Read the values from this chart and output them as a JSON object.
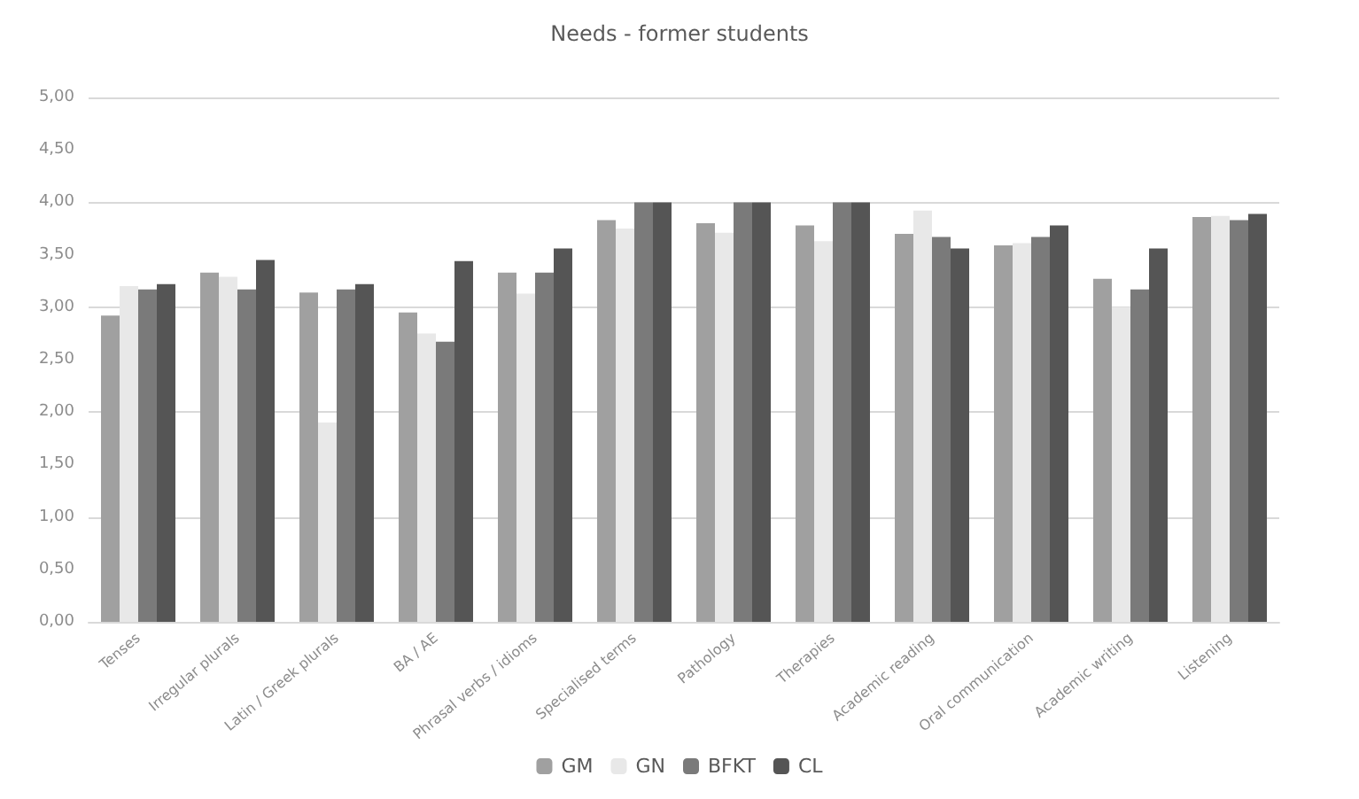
{
  "chart_data": {
    "type": "bar",
    "title": "Needs - former students",
    "categories": [
      "Tenses",
      "Irregular plurals",
      "Latin / Greek plurals",
      "BA / AE",
      "Phrasal verbs / idioms",
      "Specialised terms",
      "Pathology",
      "Therapies",
      "Academic reading",
      "Oral communication",
      "Academic writing",
      "Listening"
    ],
    "series": [
      {
        "name": "GM",
        "color": "#a0a0a0",
        "values": [
          2.92,
          3.33,
          3.14,
          2.95,
          3.33,
          3.83,
          3.8,
          3.78,
          3.7,
          3.59,
          3.27,
          3.86
        ]
      },
      {
        "name": "GN",
        "color": "#e8e8e8",
        "values": [
          3.2,
          3.29,
          1.9,
          2.75,
          3.13,
          3.75,
          3.71,
          3.63,
          3.92,
          3.61,
          3.0,
          3.87
        ]
      },
      {
        "name": "BFKT",
        "color": "#7a7a7a",
        "values": [
          3.17,
          3.17,
          3.17,
          2.67,
          3.33,
          4.0,
          4.0,
          4.0,
          3.67,
          3.67,
          3.17,
          3.83
        ]
      },
      {
        "name": "CL",
        "color": "#555555",
        "values": [
          3.22,
          3.45,
          3.22,
          3.44,
          3.56,
          4.0,
          4.0,
          4.0,
          3.56,
          3.78,
          3.56,
          3.89
        ]
      }
    ],
    "ylim": [
      0,
      5
    ],
    "yticks": [
      {
        "value": 0,
        "label": "0,00"
      },
      {
        "value": 0.5,
        "label": "0,50"
      },
      {
        "value": 1,
        "label": "1,00"
      },
      {
        "value": 1.5,
        "label": "1,50"
      },
      {
        "value": 2,
        "label": "2,00"
      },
      {
        "value": 2.5,
        "label": "2,50"
      },
      {
        "value": 3,
        "label": "3,00"
      },
      {
        "value": 3.5,
        "label": "3,50"
      },
      {
        "value": 4,
        "label": "4,00"
      },
      {
        "value": 4.5,
        "label": "4,50"
      },
      {
        "value": 5,
        "label": "5,00"
      }
    ],
    "grid": "y",
    "legend": "bottom"
  }
}
